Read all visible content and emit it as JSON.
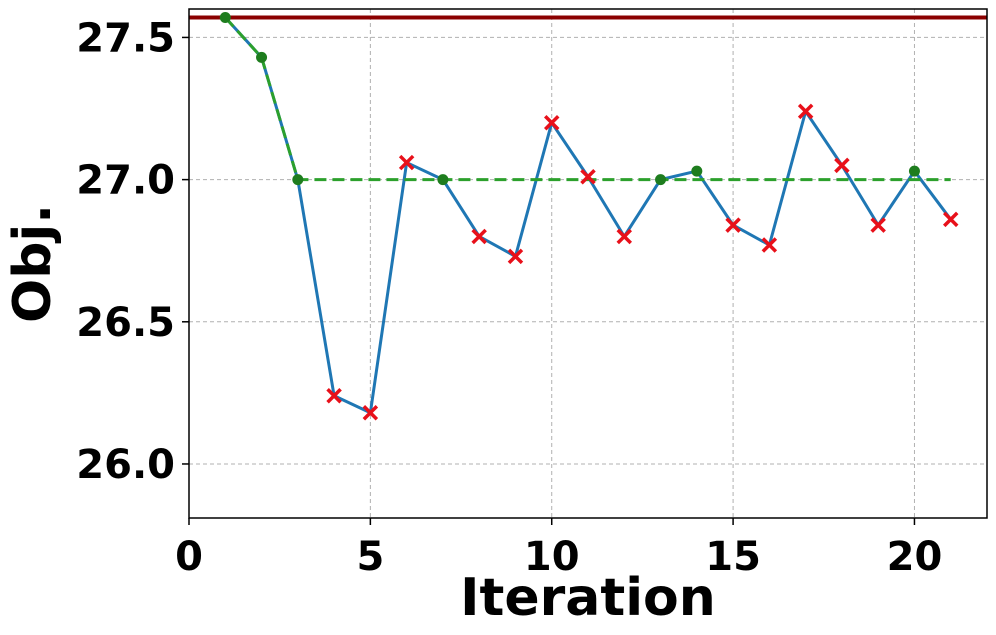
{
  "chart_data": {
    "type": "line",
    "title": "",
    "xlabel": "Iteration",
    "ylabel": "Obj.",
    "xlim": [
      0,
      22
    ],
    "ylim": [
      25.81,
      27.6
    ],
    "xticks": [
      0,
      5,
      10,
      15,
      20
    ],
    "xtick_labels": [
      "0",
      "5",
      "10",
      "15",
      "20"
    ],
    "yticks": [
      26.0,
      26.5,
      27.0,
      27.5
    ],
    "ytick_labels": [
      "26.0",
      "26.5",
      "27.0",
      "27.5"
    ],
    "grid": true,
    "legend": "none",
    "series": [
      {
        "type": "line",
        "color": "#1f77b4",
        "x": [
          1,
          2,
          3,
          4,
          5,
          6,
          7,
          8,
          9,
          10,
          11,
          12,
          13,
          14,
          15,
          16,
          17,
          18,
          19,
          20,
          21
        ],
        "values": [
          27.57,
          27.43,
          27.0,
          26.24,
          26.18,
          27.06,
          27.0,
          26.8,
          26.73,
          27.2,
          27.01,
          26.8,
          27.0,
          27.03,
          26.84,
          26.77,
          27.24,
          27.05,
          26.84,
          27.03,
          26.86
        ]
      },
      {
        "type": "step-best",
        "color": "#2ca02c",
        "style": "dashed",
        "x": [
          1,
          2,
          3,
          21
        ],
        "values": [
          27.57,
          27.43,
          27.0,
          27.0
        ]
      },
      {
        "type": "hline",
        "color": "#8b0000",
        "value": 27.57
      },
      {
        "type": "accepted-markers",
        "marker": "circle",
        "color": "#1e7d1e",
        "x": [
          1,
          2,
          3,
          7,
          13,
          14,
          20
        ],
        "values": [
          27.57,
          27.43,
          27.0,
          27.0,
          27.0,
          27.03,
          27.03
        ]
      },
      {
        "type": "rejected-markers",
        "marker": "x",
        "color": "#e8101a",
        "x": [
          4,
          5,
          6,
          8,
          9,
          10,
          11,
          12,
          15,
          16,
          17,
          18,
          19,
          21
        ],
        "values": [
          26.24,
          26.18,
          27.06,
          26.8,
          26.73,
          27.2,
          27.01,
          26.8,
          26.84,
          26.77,
          27.24,
          27.05,
          26.84,
          26.86
        ]
      }
    ]
  }
}
